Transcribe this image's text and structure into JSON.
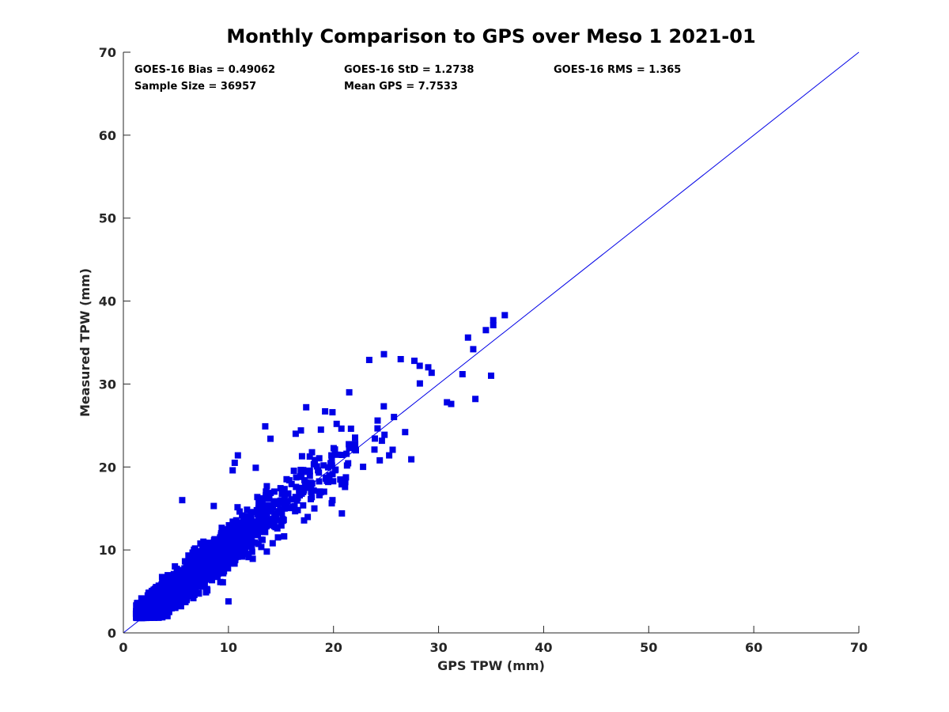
{
  "chart_data": {
    "type": "scatter",
    "title": "Monthly Comparison to GPS over Meso 1 2021-01",
    "xlabel": "GPS TPW (mm)",
    "ylabel": "Measured TPW (mm)",
    "xlim": [
      0,
      70
    ],
    "ylim": [
      0,
      70
    ],
    "xticks": [
      "0",
      "10",
      "20",
      "30",
      "40",
      "50",
      "60",
      "70"
    ],
    "yticks": [
      "0",
      "10",
      "20",
      "30",
      "40",
      "50",
      "60",
      "70"
    ],
    "grid": false,
    "marker_color": "#0000e6",
    "reference_line": {
      "name": "1:1 line",
      "x": [
        0,
        70
      ],
      "y": [
        0,
        70
      ],
      "color": "#0000e6"
    },
    "stats": {
      "bias": "GOES-16 Bias = 0.49062",
      "std": "GOES-16 StD = 1.2738",
      "rms": "GOES-16 RMS = 1.365",
      "sample_size": "Sample Size = 36957",
      "mean_gps": "Mean GPS = 7.7533"
    },
    "point_cloud": {
      "description": "dense cluster of matched samples along the 1:1 line",
      "sample_size": 36957,
      "bias": 0.49062,
      "std": 1.2738,
      "mean_x": 7.7533,
      "x_range": [
        0.8,
        36.3
      ],
      "y_range": [
        1.8,
        38.3
      ]
    },
    "outliers": [
      [
        36.3,
        38.3
      ],
      [
        35.2,
        37.7
      ],
      [
        35.2,
        37.1
      ],
      [
        34.5,
        36.5
      ],
      [
        32.8,
        35.6
      ],
      [
        33.3,
        34.2
      ],
      [
        35.0,
        31.0
      ],
      [
        33.5,
        28.2
      ],
      [
        31.2,
        27.6
      ],
      [
        30.8,
        27.8
      ],
      [
        24.8,
        33.6
      ],
      [
        23.4,
        32.9
      ],
      [
        26.4,
        33.0
      ],
      [
        28.2,
        32.2
      ],
      [
        27.7,
        32.8
      ],
      [
        21.5,
        29.0
      ],
      [
        17.4,
        27.2
      ],
      [
        19.9,
        26.6
      ],
      [
        16.4,
        24.0
      ],
      [
        19.2,
        26.7
      ],
      [
        16.9,
        24.4
      ],
      [
        13.5,
        24.9
      ],
      [
        14.0,
        23.4
      ],
      [
        10.9,
        21.4
      ],
      [
        10.6,
        20.5
      ],
      [
        10.4,
        19.6
      ],
      [
        12.6,
        19.9
      ],
      [
        5.6,
        16.0
      ],
      [
        8.6,
        15.3
      ],
      [
        20.8,
        14.4
      ],
      [
        10.0,
        3.8
      ],
      [
        21.1,
        17.6
      ],
      [
        25.3,
        21.4
      ],
      [
        24.4,
        20.8
      ],
      [
        19.9,
        16.0
      ],
      [
        23.9,
        22.1
      ],
      [
        18.8,
        24.5
      ],
      [
        17.0,
        21.3
      ],
      [
        20.3,
        25.2
      ]
    ]
  }
}
